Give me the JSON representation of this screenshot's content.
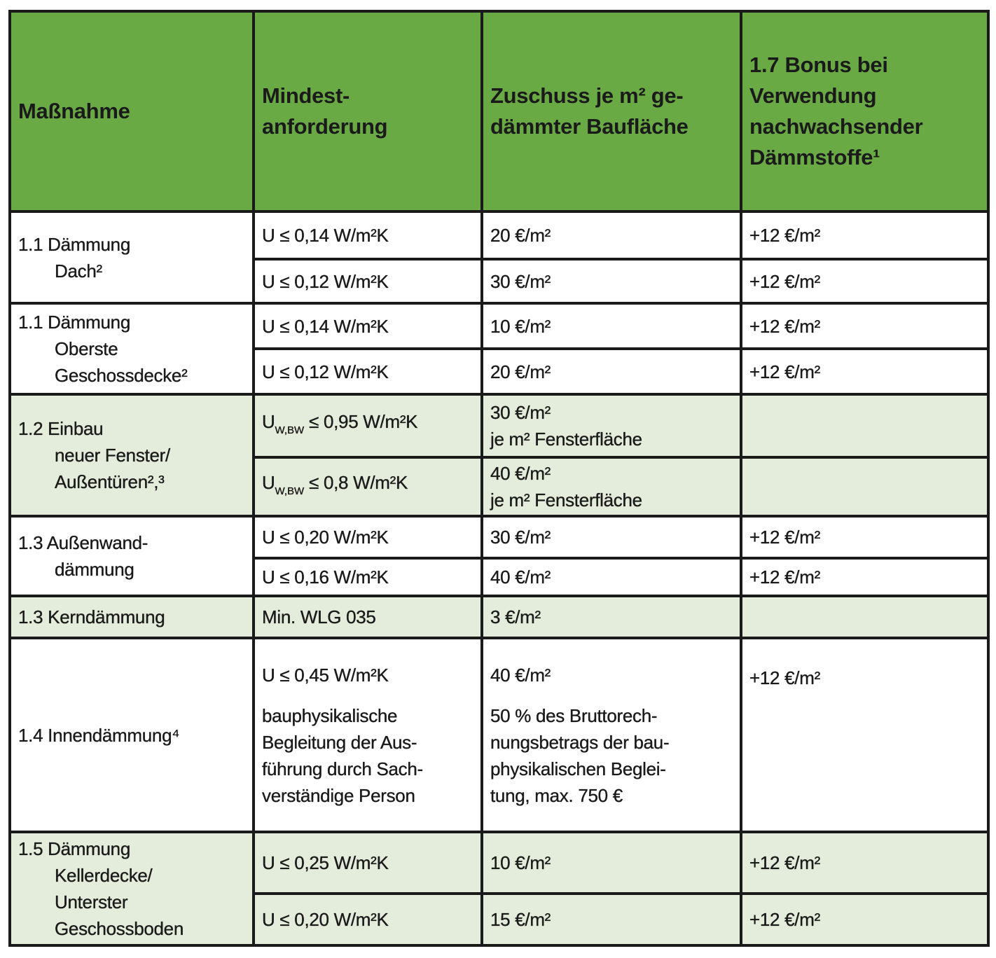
{
  "colors": {
    "header": "#6aaa45",
    "shaded_row": "#e4ecdb",
    "border": "#1a1a1a"
  },
  "header": [
    [
      "Maßnahme"
    ],
    [
      "Mindest-",
      "anforderung"
    ],
    [
      "Zuschuss je m² ge-",
      "dämmter Baufläche"
    ],
    [
      "1.7 Bonus bei",
      "Verwendung",
      "nachwachsender",
      "Dämmstoffe¹"
    ]
  ],
  "groups": [
    {
      "measure": [
        "1.1 Dämmung",
        "Dach²"
      ],
      "shaded": false,
      "rows": [
        {
          "req": [
            {
              "text": "U ≤ 0,14 W/m²K"
            }
          ],
          "grant": [
            "20 €/m²"
          ],
          "bonus": "+12 €/m²"
        },
        {
          "req": [
            {
              "text": "U ≤ 0,12 W/m²K"
            }
          ],
          "grant": [
            "30 €/m²"
          ],
          "bonus": "+12 €/m²"
        }
      ]
    },
    {
      "measure": [
        "1.1 Dämmung",
        "Oberste",
        "Geschossdecke²"
      ],
      "shaded": false,
      "rows": [
        {
          "req": [
            {
              "text": "U ≤ 0,14 W/m²K"
            }
          ],
          "grant": [
            "10 €/m²"
          ],
          "bonus": "+12 €/m²"
        },
        {
          "req": [
            {
              "text": "U ≤ 0,12 W/m²K"
            }
          ],
          "grant": [
            "20 €/m²"
          ],
          "bonus": "+12 €/m²"
        }
      ]
    },
    {
      "measure": [
        "1.2 Einbau",
        "neuer Fenster/",
        "Außentüren²,³"
      ],
      "shaded": true,
      "rows": [
        {
          "req": [
            {
              "text": "U",
              "sub": "W,BW",
              "after": " ≤ 0,95 W/m²K"
            }
          ],
          "grant": [
            "30 €/m²",
            "je m² Fensterfläche"
          ],
          "bonus": ""
        },
        {
          "req": [
            {
              "text": "U",
              "sub": "W,BW",
              "after": " ≤ 0,8 W/m²K"
            }
          ],
          "grant": [
            "40 €/m²",
            "je m² Fensterfläche"
          ],
          "bonus": ""
        }
      ]
    },
    {
      "measure": [
        "1.3 Außenwand-",
        "dämmung"
      ],
      "shaded": false,
      "rows": [
        {
          "req": [
            {
              "text": "U ≤ 0,20 W/m²K"
            }
          ],
          "grant": [
            "30 €/m²"
          ],
          "bonus": "+12 €/m²"
        },
        {
          "req": [
            {
              "text": "U ≤ 0,16 W/m²K"
            }
          ],
          "grant": [
            "40 €/m²"
          ],
          "bonus": "+12 €/m²"
        }
      ]
    },
    {
      "measure": [
        "1.3 Kerndämmung"
      ],
      "shaded": true,
      "rows": [
        {
          "req": [
            {
              "text": "Min. WLG 035"
            }
          ],
          "grant": [
            "3 €/m²"
          ],
          "bonus": ""
        }
      ]
    },
    {
      "measure": [
        "1.4 Innendämmung⁴"
      ],
      "shaded": false,
      "rows": [
        {
          "req": [
            {
              "text": "U ≤ 0,45 W/m²K"
            },
            {
              "text": ""
            },
            {
              "text": "bauphysikalische"
            },
            {
              "text": "Begleitung der Aus-"
            },
            {
              "text": "führung durch Sach-"
            },
            {
              "text": "verständige Person"
            }
          ],
          "grant": [
            "40 €/m²",
            "",
            "50 % des Bruttorech-",
            "nungsbetrags der bau-",
            "physikalischen Beglei-",
            "tung, max. 750 €"
          ],
          "bonus": "+12 €/m²",
          "bonus_top": true
        }
      ]
    },
    {
      "measure": [
        "1.5 Dämmung",
        "Kellerdecke/",
        "Unterster",
        "Geschossboden"
      ],
      "shaded": true,
      "rows": [
        {
          "req": [
            {
              "text": "U ≤ 0,25 W/m²K"
            }
          ],
          "grant": [
            "10 €/m²"
          ],
          "bonus": "+12 €/m²"
        },
        {
          "req": [
            {
              "text": "U ≤ 0,20 W/m²K"
            }
          ],
          "grant": [
            "15 €/m²"
          ],
          "bonus": "+12 €/m²"
        }
      ]
    }
  ]
}
